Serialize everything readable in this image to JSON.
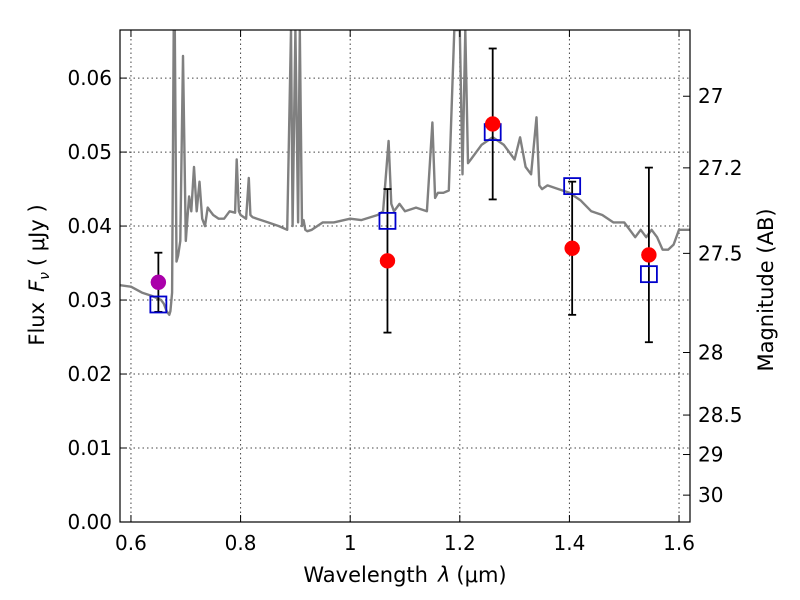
{
  "chart_data": {
    "type": "scatter",
    "xlabel_text": "Wavelength",
    "xlabel_sym": "λ",
    "xlabel_unit": "(μm)",
    "ylabel_text": "Flux",
    "ylabel_sym": "F",
    "ylabel_sub": "ν",
    "ylabel_unit": "( μJy )",
    "y2label": "Magnitude (AB)",
    "xlim": [
      0.58,
      1.62
    ],
    "ylim": [
      0.0,
      0.0665
    ],
    "xticks": [
      0.6,
      0.8,
      1.0,
      1.2,
      1.4,
      1.6
    ],
    "xtick_labels": [
      "0.6",
      "0.8",
      "1",
      "1.2",
      "1.4",
      "1.6"
    ],
    "yticks": [
      0.0,
      0.01,
      0.02,
      0.03,
      0.04,
      0.05,
      0.06
    ],
    "ytick_labels": [
      "0.00",
      "0.01",
      "0.02",
      "0.03",
      "0.04",
      "0.05",
      "0.06"
    ],
    "y2ticks": [
      {
        "mag": 27,
        "label": "27"
      },
      {
        "mag": 27.2,
        "label": "27.2"
      },
      {
        "mag": 27.5,
        "label": "27.5"
      },
      {
        "mag": 28,
        "label": "28"
      },
      {
        "mag": 28.5,
        "label": "28.5"
      },
      {
        "mag": 29,
        "label": "29"
      },
      {
        "mag": 30,
        "label": "30"
      }
    ],
    "grid": true,
    "colors": {
      "spectrum": "#808080",
      "observed": "#ff0000",
      "observed_special": "#aa00aa",
      "model": "#0000cc",
      "errorbar": "#000000"
    },
    "series": [
      {
        "name": "observed",
        "marker": "circle",
        "points": [
          {
            "x": 0.65,
            "y": 0.0324,
            "err": 0.004,
            "color": "#aa00aa"
          },
          {
            "x": 1.068,
            "y": 0.0353,
            "err": 0.0097
          },
          {
            "x": 1.26,
            "y": 0.0538,
            "err": 0.0102
          },
          {
            "x": 1.405,
            "y": 0.037,
            "err": 0.009
          },
          {
            "x": 1.545,
            "y": 0.0361,
            "err": 0.0118
          }
        ]
      },
      {
        "name": "model_band",
        "marker": "square",
        "points": [
          {
            "x": 0.65,
            "y": 0.0294
          },
          {
            "x": 1.068,
            "y": 0.0407
          },
          {
            "x": 1.26,
            "y": 0.0527
          },
          {
            "x": 1.405,
            "y": 0.0454
          },
          {
            "x": 1.545,
            "y": 0.0335
          }
        ]
      },
      {
        "name": "spectrum",
        "type": "line",
        "x": [
          0.58,
          0.6,
          0.62,
          0.64,
          0.655,
          0.66,
          0.665,
          0.67,
          0.672,
          0.675,
          0.678,
          0.68,
          0.683,
          0.686,
          0.69,
          0.695,
          0.7,
          0.703,
          0.706,
          0.71,
          0.715,
          0.72,
          0.725,
          0.73,
          0.735,
          0.74,
          0.745,
          0.75,
          0.76,
          0.77,
          0.78,
          0.79,
          0.793,
          0.797,
          0.8,
          0.81,
          0.815,
          0.818,
          0.822,
          0.83,
          0.85,
          0.87,
          0.885,
          0.892,
          0.895,
          0.9,
          0.905,
          0.908,
          0.912,
          0.915,
          0.918,
          0.922,
          0.93,
          0.95,
          0.97,
          1.0,
          1.02,
          1.05,
          1.06,
          1.07,
          1.075,
          1.08,
          1.09,
          1.1,
          1.12,
          1.14,
          1.15,
          1.155,
          1.16,
          1.17,
          1.18,
          1.19,
          1.2,
          1.205,
          1.21,
          1.215,
          1.22,
          1.24,
          1.26,
          1.28,
          1.3,
          1.31,
          1.32,
          1.33,
          1.34,
          1.345,
          1.35,
          1.36,
          1.38,
          1.4,
          1.42,
          1.44,
          1.46,
          1.48,
          1.5,
          1.52,
          1.53,
          1.54,
          1.55,
          1.56,
          1.57,
          1.58,
          1.59,
          1.6,
          1.62
        ],
        "y": [
          0.032,
          0.0318,
          0.031,
          0.0305,
          0.03,
          0.0295,
          0.0285,
          0.028,
          0.0285,
          0.031,
          0.0665,
          0.0665,
          0.0352,
          0.036,
          0.038,
          0.063,
          0.038,
          0.041,
          0.044,
          0.042,
          0.048,
          0.042,
          0.046,
          0.041,
          0.04,
          0.0425,
          0.042,
          0.0415,
          0.041,
          0.041,
          0.042,
          0.0418,
          0.049,
          0.042,
          0.0415,
          0.041,
          0.0465,
          0.0415,
          0.0412,
          0.041,
          0.0405,
          0.04,
          0.0395,
          0.0665,
          0.04,
          0.0665,
          0.0405,
          0.0665,
          0.04,
          0.0408,
          0.0395,
          0.0393,
          0.0395,
          0.0405,
          0.0405,
          0.041,
          0.0408,
          0.0415,
          0.042,
          0.0515,
          0.043,
          0.042,
          0.043,
          0.042,
          0.0425,
          0.042,
          0.054,
          0.0438,
          0.0445,
          0.0445,
          0.0448,
          0.0665,
          0.0665,
          0.047,
          0.0665,
          0.0485,
          0.049,
          0.051,
          0.052,
          0.051,
          0.049,
          0.052,
          0.048,
          0.047,
          0.0547,
          0.0455,
          0.045,
          0.0455,
          0.045,
          0.0445,
          0.0435,
          0.042,
          0.0415,
          0.0405,
          0.0405,
          0.0385,
          0.0395,
          0.0385,
          0.0395,
          0.0385,
          0.0368,
          0.0368,
          0.0375,
          0.0395,
          0.0395
        ]
      }
    ]
  }
}
